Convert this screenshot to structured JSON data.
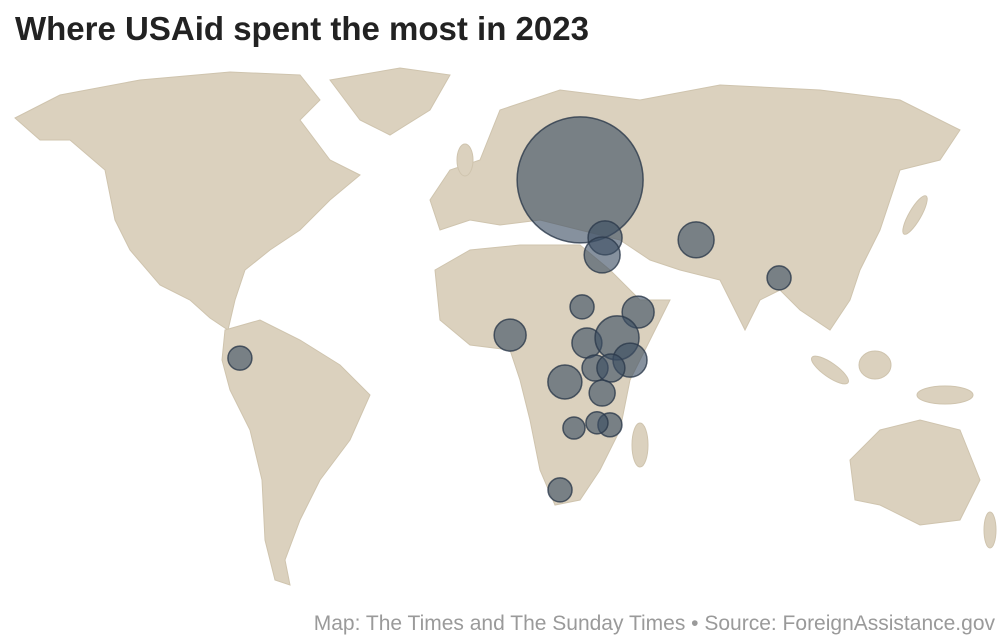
{
  "header": {
    "title": "Where USAid spent the most in 2023"
  },
  "footer": {
    "source": "Map: The Times and The Sunday Times • Source: ForeignAssistance.gov"
  },
  "map": {
    "type": "bubble-map",
    "bubbles": [
      {
        "lon": 30.9,
        "lat": 48.9,
        "value": 16000
      },
      {
        "lon": 38.6,
        "lat": 34.3,
        "value": 1165
      },
      {
        "lon": 37.7,
        "lat": 30.0,
        "value": 1300
      },
      {
        "lon": 66.7,
        "lat": 33.8,
        "value": 1300
      },
      {
        "lon": 92.3,
        "lat": 24.2,
        "value": 580
      },
      {
        "lon": -74.1,
        "lat": 4.0,
        "value": 580
      },
      {
        "lon": 9.3,
        "lat": 9.8,
        "value": 1030
      },
      {
        "lon": 31.5,
        "lat": 16.9,
        "value": 580
      },
      {
        "lon": 48.8,
        "lat": 15.6,
        "value": 1030
      },
      {
        "lon": 33.0,
        "lat": 7.8,
        "value": 905
      },
      {
        "lon": 42.3,
        "lat": 9.1,
        "value": 1950
      },
      {
        "lon": 46.3,
        "lat": 3.5,
        "value": 1165
      },
      {
        "lon": 35.5,
        "lat": 1.5,
        "value": 680
      },
      {
        "lon": 40.4,
        "lat": 1.5,
        "value": 790
      },
      {
        "lon": 26.2,
        "lat": -2.0,
        "value": 1165
      },
      {
        "lon": 37.7,
        "lat": -4.8,
        "value": 680
      },
      {
        "lon": 40.1,
        "lat": -12.8,
        "value": 580
      },
      {
        "lon": 36.1,
        "lat": -12.3,
        "value": 490
      },
      {
        "lon": 29.0,
        "lat": -13.6,
        "value": 490
      },
      {
        "lon": 24.7,
        "lat": -29.2,
        "value": 580
      }
    ]
  }
}
